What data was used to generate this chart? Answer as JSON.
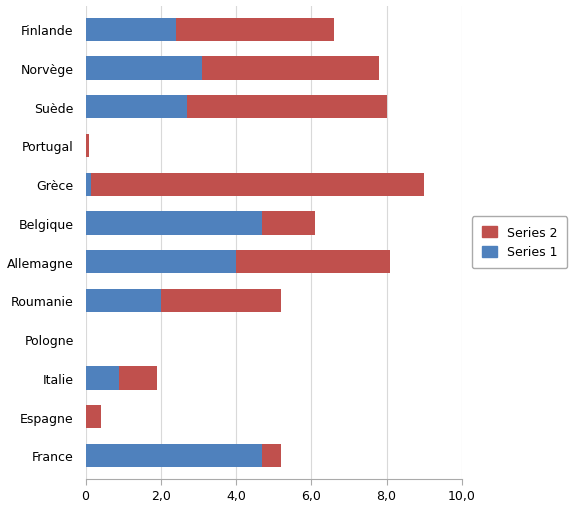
{
  "categories": [
    "France",
    "Espagne",
    "Italie",
    "Pologne",
    "Roumanie",
    "Allemagne",
    "Belgique",
    "Grèce",
    "Portugal",
    "Suède",
    "Norvège",
    "Finlande"
  ],
  "series2": [
    5.2,
    0.4,
    1.9,
    0.0,
    5.2,
    8.1,
    6.1,
    9.0,
    0.1,
    8.0,
    7.8,
    6.6
  ],
  "series1": [
    4.7,
    0.0,
    0.9,
    0.0,
    2.0,
    4.0,
    4.7,
    0.15,
    0.0,
    2.7,
    3.1,
    2.4
  ],
  "series2_color": "#c0504d",
  "series1_color": "#4f81bd",
  "legend_series2": "Series 2",
  "legend_series1": "Series 1",
  "background_color": "#ffffff",
  "bar_height": 0.6,
  "xlim": [
    0,
    10
  ],
  "xtick_labels": [
    "0",
    "2,0",
    "4,0",
    "6,0",
    "8,0",
    "10,0"
  ],
  "xtick_vals": [
    0,
    2,
    4,
    6,
    8,
    10
  ],
  "figsize": [
    5.75,
    5.1
  ],
  "dpi": 100,
  "grid_color": "#d9d9d9",
  "spine_color": "#aaaaaa"
}
